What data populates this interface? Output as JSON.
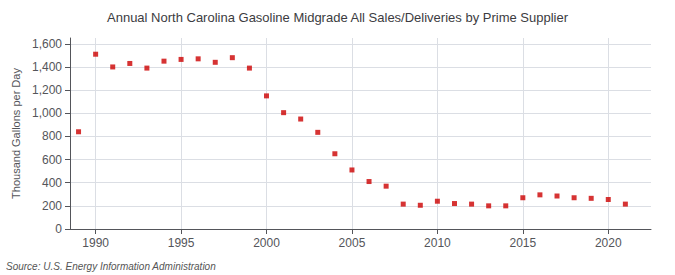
{
  "chart_data": {
    "type": "scatter",
    "title": "Annual North Carolina Gasoline Midgrade All Sales/Deliveries by Prime Supplier",
    "ylabel": "Thousand Gallons per Day",
    "annotations": [
      "Source: U.S. Energy Information Administration"
    ],
    "color": "#cc0000",
    "marker": "square",
    "grid": true,
    "x": [
      1989,
      1990,
      1991,
      1992,
      1993,
      1994,
      1995,
      1996,
      1997,
      1998,
      1999,
      2000,
      2001,
      2002,
      2003,
      2004,
      2005,
      2006,
      2007,
      2008,
      2009,
      2010,
      2011,
      2012,
      2013,
      2014,
      2015,
      2016,
      2017,
      2018,
      2019,
      2020,
      2021
    ],
    "values": [
      840,
      1510,
      1400,
      1430,
      1390,
      1450,
      1465,
      1470,
      1440,
      1480,
      1390,
      1150,
      1005,
      950,
      835,
      650,
      510,
      410,
      370,
      215,
      205,
      240,
      220,
      215,
      200,
      200,
      270,
      295,
      285,
      270,
      265,
      255,
      215
    ],
    "xlim": [
      1988.5,
      2022.5
    ],
    "xticks": [
      1990,
      1995,
      2000,
      2005,
      2010,
      2015,
      2020
    ],
    "ylim": [
      0,
      1650
    ],
    "yticks": [
      0,
      200,
      400,
      600,
      800,
      {
        "value": 1000,
        "label": "1,000"
      },
      {
        "value": 1200,
        "label": "1,200"
      },
      {
        "value": 1400,
        "label": "1,400"
      },
      {
        "value": 1600,
        "label": "1,600"
      }
    ]
  }
}
